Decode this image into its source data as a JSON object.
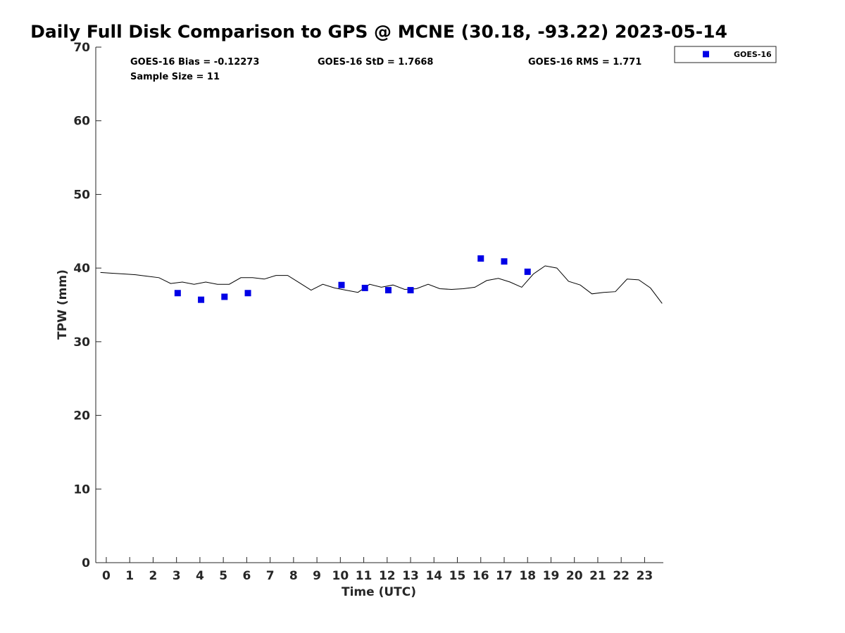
{
  "chart_data": {
    "type": "scatter",
    "title": "Daily Full Disk Comparison to GPS @ MCNE (30.18, -93.22) 2023-05-14",
    "xlabel": "Time (UTC)",
    "ylabel": "TPW (mm)",
    "xlim": [
      -0.45,
      23.8
    ],
    "ylim": [
      0,
      70
    ],
    "x_ticks": [
      0,
      1,
      2,
      3,
      4,
      5,
      6,
      7,
      8,
      9,
      10,
      11,
      12,
      13,
      14,
      15,
      16,
      17,
      18,
      19,
      20,
      21,
      22,
      23
    ],
    "x_tick_labels": [
      "0",
      "1",
      "2",
      "3",
      "4",
      "5",
      "6",
      "7",
      "8",
      "9",
      "10",
      "11",
      "12",
      "13",
      "14",
      "15",
      "16",
      "17",
      "18",
      "19",
      "20",
      "21",
      "22",
      "23"
    ],
    "y_ticks": [
      0,
      10,
      20,
      30,
      40,
      50,
      60,
      70
    ],
    "y_tick_labels": [
      "0",
      "10",
      "20",
      "30",
      "40",
      "50",
      "60",
      "70"
    ],
    "grid": false,
    "legend_position": "top-right outside plot",
    "stats": {
      "bias": "GOES-16 Bias = -0.12273",
      "std": "GOES-16 StD = 1.7668",
      "rms": "GOES-16 RMS = 1.771",
      "sample": "Sample Size = 11"
    },
    "series": [
      {
        "name": "GOES-16",
        "kind": "scatter",
        "marker": "square",
        "color": "#0000e6",
        "x": [
          3.05,
          4.05,
          5.05,
          6.05,
          10.05,
          11.05,
          12.05,
          13.0,
          16.0,
          17.0,
          18.0
        ],
        "y": [
          36.6,
          35.7,
          36.1,
          36.6,
          37.7,
          37.3,
          37.0,
          37.0,
          41.3,
          40.9,
          39.5
        ]
      },
      {
        "kind": "line",
        "color": "#000000",
        "x": [
          -0.25,
          0.25,
          0.75,
          1.25,
          1.75,
          2.25,
          2.75,
          3.25,
          3.75,
          4.25,
          4.75,
          5.25,
          5.75,
          6.25,
          6.75,
          7.25,
          7.75,
          8.25,
          8.75,
          9.25,
          9.75,
          10.25,
          10.75,
          11.25,
          11.75,
          12.25,
          12.75,
          13.25,
          13.75,
          14.25,
          14.75,
          15.25,
          15.75,
          16.25,
          16.75,
          17.25,
          17.75,
          18.25,
          18.75,
          19.25,
          19.75,
          20.25,
          20.75,
          21.25,
          21.75,
          22.25,
          22.75,
          23.25,
          23.75
        ],
        "y": [
          39.4,
          39.3,
          39.2,
          39.1,
          38.9,
          38.7,
          37.9,
          38.1,
          37.8,
          38.1,
          37.8,
          37.8,
          38.7,
          38.7,
          38.5,
          39.0,
          39.0,
          38.0,
          37.0,
          37.8,
          37.3,
          37.0,
          36.7,
          37.8,
          37.4,
          37.7,
          37.1,
          37.2,
          37.8,
          37.2,
          37.1,
          37.2,
          37.4,
          38.3,
          38.6,
          38.1,
          37.4,
          39.2,
          40.3,
          40.0,
          38.2,
          37.7,
          36.5,
          36.7,
          36.8,
          38.5,
          38.4,
          37.3,
          35.2
        ]
      }
    ]
  }
}
